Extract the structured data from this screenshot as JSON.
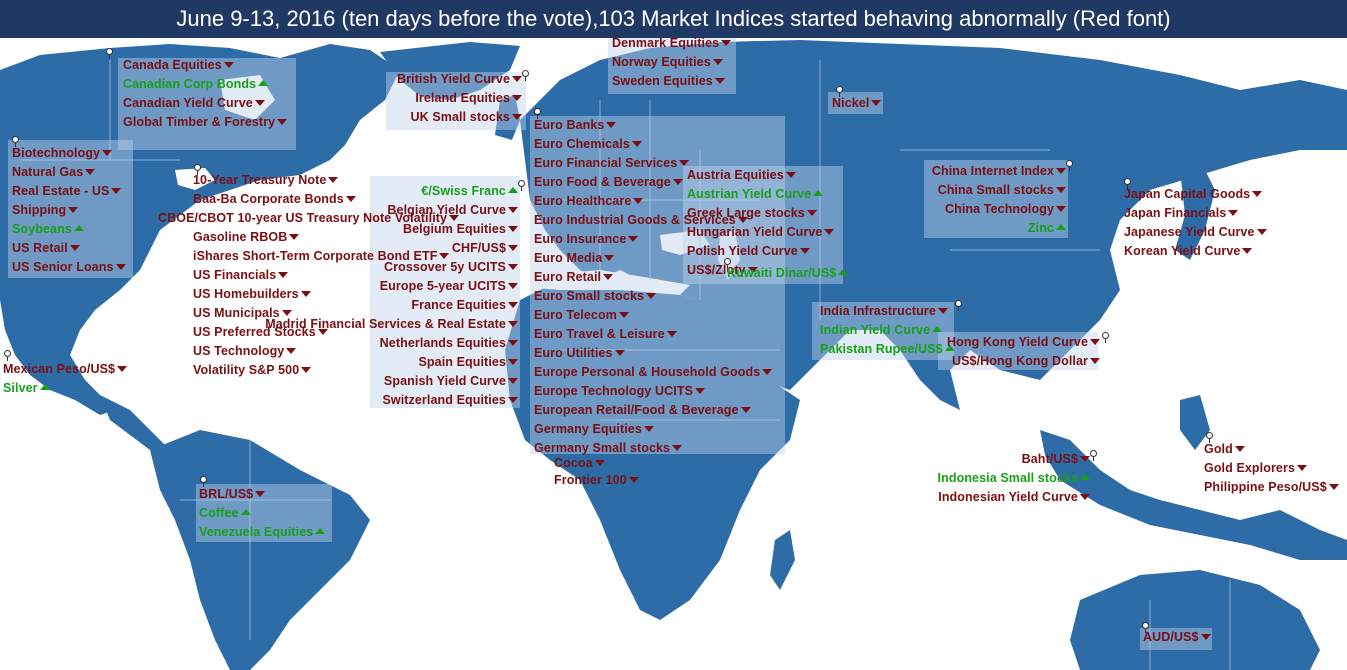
{
  "title": "June 9-13, 2016  (ten days before the vote),103 Market Indices started behaving abnormally (Red font)",
  "colors": {
    "land": "#2e6ca8",
    "title_bar": "#203864",
    "declining": "#7b0f12",
    "rising": "#18a018"
  },
  "groups": [
    {
      "region": "Canada",
      "items": [
        {
          "text": "Canada Equities",
          "dir": "down"
        },
        {
          "text": "Canadian Corp Bonds",
          "dir": "up"
        },
        {
          "text": "Canadian Yield Curve",
          "dir": "down"
        },
        {
          "text": "Global Timber & Forestry",
          "dir": "down"
        }
      ]
    },
    {
      "region": "US East",
      "items": [
        {
          "text": "Biotechnology",
          "dir": "down"
        },
        {
          "text": "Natural Gas",
          "dir": "down"
        },
        {
          "text": "Real Estate - US",
          "dir": "down"
        },
        {
          "text": "Shipping",
          "dir": "down"
        },
        {
          "text": "Soybeans",
          "dir": "up"
        },
        {
          "text": "US Retail",
          "dir": "down"
        },
        {
          "text": "US Senior Loans",
          "dir": "down"
        }
      ]
    },
    {
      "region": "US Chicago",
      "items": [
        {
          "text": "10-Year Treasury Note",
          "dir": "down"
        },
        {
          "text": "Baa-Ba Corporate Bonds",
          "dir": "down"
        },
        {
          "text": "CBOE/CBOT 10-year US Treasury Note Volatility",
          "dir": "down"
        },
        {
          "text": "Gasoline RBOB",
          "dir": "down"
        },
        {
          "text": "iShares Short-Term Corporate Bond ETF",
          "dir": "down"
        },
        {
          "text": "US Financials",
          "dir": "down"
        },
        {
          "text": "US Homebuilders",
          "dir": "down"
        },
        {
          "text": "US Municipals",
          "dir": "down"
        },
        {
          "text": "US Preferred Stocks",
          "dir": "down"
        },
        {
          "text": "US Technology",
          "dir": "down"
        },
        {
          "text": "Volatility S&P 500",
          "dir": "down"
        }
      ]
    },
    {
      "region": "Mexico",
      "items": [
        {
          "text": "Mexican Peso/US$",
          "dir": "down"
        },
        {
          "text": "Silver",
          "dir": "up"
        }
      ]
    },
    {
      "region": "Brazil",
      "items": [
        {
          "text": "BRL/US$",
          "dir": "down"
        },
        {
          "text": "Coffee",
          "dir": "up"
        },
        {
          "text": "Venezuela Equities",
          "dir": "up"
        }
      ]
    },
    {
      "region": "UK",
      "items": [
        {
          "text": "British Yield Curve",
          "dir": "down"
        },
        {
          "text": "Ireland Equities",
          "dir": "down"
        },
        {
          "text": "UK Small stocks",
          "dir": "down"
        }
      ]
    },
    {
      "region": "Nordic",
      "items": [
        {
          "text": "Denmark Equities",
          "dir": "down"
        },
        {
          "text": "Norway Equities",
          "dir": "down"
        },
        {
          "text": "Sweden Equities",
          "dir": "down"
        }
      ]
    },
    {
      "region": "Western Europe",
      "items": [
        {
          "text": "€/Swiss Franc",
          "dir": "up"
        },
        {
          "text": "Belgian Yield Curve",
          "dir": "down"
        },
        {
          "text": "Belgium Equities",
          "dir": "down"
        },
        {
          "text": "CHF/US$",
          "dir": "down"
        },
        {
          "text": "Crossover 5y UCITS",
          "dir": "down"
        },
        {
          "text": "Europe 5-year UCITS",
          "dir": "down"
        },
        {
          "text": "France Equities",
          "dir": "down"
        },
        {
          "text": "Madrid Financial Services & Real Estate",
          "dir": "down"
        },
        {
          "text": "Netherlands Equities",
          "dir": "down"
        },
        {
          "text": "Spain Equities",
          "dir": "down"
        },
        {
          "text": "Spanish Yield Curve",
          "dir": "down"
        },
        {
          "text": "Switzerland Equities",
          "dir": "down"
        }
      ]
    },
    {
      "region": "Euro",
      "items": [
        {
          "text": "Euro Banks",
          "dir": "down"
        },
        {
          "text": "Euro Chemicals",
          "dir": "down"
        },
        {
          "text": "Euro Financial Services",
          "dir": "down"
        },
        {
          "text": "Euro Food & Beverage",
          "dir": "down"
        },
        {
          "text": "Euro Healthcare",
          "dir": "down"
        },
        {
          "text": "Euro Industrial Goods & Services",
          "dir": "down"
        },
        {
          "text": "Euro Insurance",
          "dir": "down"
        },
        {
          "text": "Euro Media",
          "dir": "down"
        },
        {
          "text": "Euro Retail",
          "dir": "down"
        },
        {
          "text": "Euro Small stocks",
          "dir": "down"
        },
        {
          "text": "Euro Telecom",
          "dir": "down"
        },
        {
          "text": "Euro Travel & Leisure",
          "dir": "down"
        },
        {
          "text": "Euro Utilities",
          "dir": "down"
        },
        {
          "text": "Europe Personal & Household Goods",
          "dir": "down"
        },
        {
          "text": "Europe Technology UCITS",
          "dir": "down"
        },
        {
          "text": "European Retail/Food & Beverage",
          "dir": "down"
        },
        {
          "text": "Germany Equities",
          "dir": "down"
        },
        {
          "text": "Germany Small stocks",
          "dir": "down"
        },
        {
          "text": "Cocoa",
          "dir": "down"
        },
        {
          "text": "Frontier 100",
          "dir": "down"
        }
      ]
    },
    {
      "region": "Central Europe",
      "items": [
        {
          "text": "Austria Equities",
          "dir": "down"
        },
        {
          "text": "Austrian Yield Curve",
          "dir": "up"
        },
        {
          "text": "Greek Large stocks",
          "dir": "down"
        },
        {
          "text": "Hungarian Yield Curve",
          "dir": "down"
        },
        {
          "text": "Polish Yield Curve",
          "dir": "down"
        },
        {
          "text": "US$/Zloty",
          "dir": "down"
        },
        {
          "text": "Kuwaiti Dinar/US$",
          "dir": "up"
        }
      ]
    },
    {
      "region": "Russia",
      "items": [
        {
          "text": "Nickel",
          "dir": "down"
        }
      ]
    },
    {
      "region": "India",
      "items": [
        {
          "text": "India Infrastructure",
          "dir": "down"
        },
        {
          "text": "Indian Yield Curve",
          "dir": "up"
        },
        {
          "text": "Pakistan Rupee/US$",
          "dir": "up"
        }
      ]
    },
    {
      "region": "China",
      "items": [
        {
          "text": "China Internet Index",
          "dir": "down"
        },
        {
          "text": "China Small stocks",
          "dir": "down"
        },
        {
          "text": "China Technology",
          "dir": "down"
        },
        {
          "text": "Zinc",
          "dir": "up"
        }
      ]
    },
    {
      "region": "Japan",
      "items": [
        {
          "text": "Japan Capital Goods",
          "dir": "down"
        },
        {
          "text": "Japan Financials",
          "dir": "down"
        },
        {
          "text": "Japanese Yield Curve",
          "dir": "down"
        },
        {
          "text": "Korean Yield Curve",
          "dir": "down"
        }
      ]
    },
    {
      "region": "Hong Kong",
      "items": [
        {
          "text": "Hong Kong Yield Curve",
          "dir": "down"
        },
        {
          "text": "US$/Hong Kong Dollar",
          "dir": "down"
        }
      ]
    },
    {
      "region": "Southeast Asia",
      "items": [
        {
          "text": "Baht/US$",
          "dir": "down"
        },
        {
          "text": "Indonesia Small stocks",
          "dir": "up"
        },
        {
          "text": "Indonesian Yield Curve",
          "dir": "down"
        }
      ]
    },
    {
      "region": "Philippines",
      "items": [
        {
          "text": "Gold",
          "dir": "down"
        },
        {
          "text": "Gold Explorers",
          "dir": "down"
        },
        {
          "text": "Philippine Peso/US$",
          "dir": "down"
        }
      ]
    },
    {
      "region": "Australia",
      "items": [
        {
          "text": "AUD/US$",
          "dir": "down"
        }
      ]
    }
  ]
}
